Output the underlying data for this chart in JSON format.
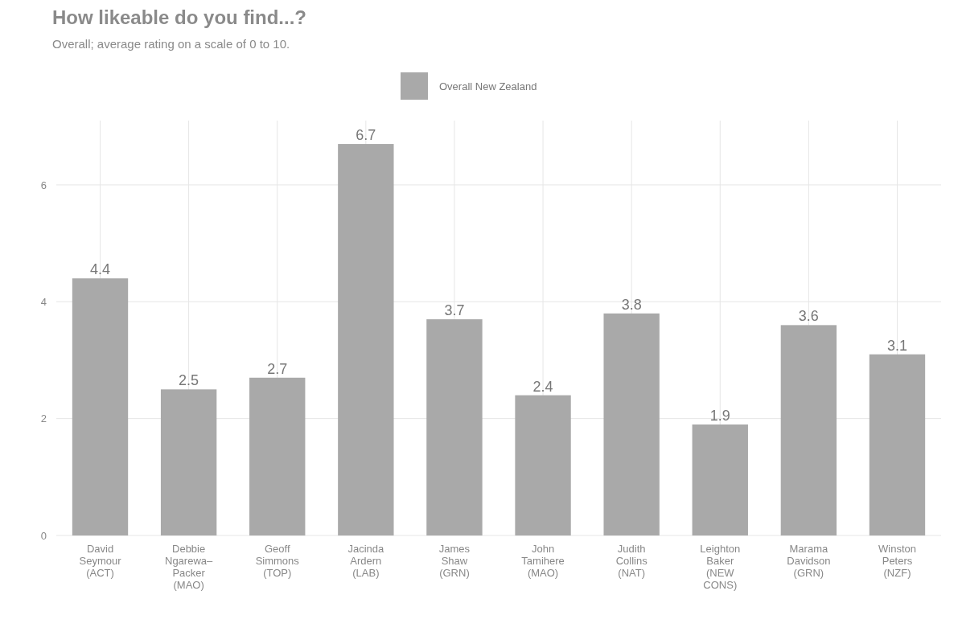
{
  "chart_data": {
    "type": "bar",
    "title": "How likeable do you find...?",
    "subtitle": "Overall; average rating on a scale of 0 to 10.",
    "categories": [
      "David Seymour (ACT)",
      "Debbie Ngarewa–Packer (MAO)",
      "Geoff Simmons (TOP)",
      "Jacinda Ardern (LAB)",
      "James Shaw (GRN)",
      "John Tamihere (MAO)",
      "Judith Collins (NAT)",
      "Leighton Baker (NEW CONS)",
      "Marama Davidson (GRN)",
      "Winston Peters (NZF)"
    ],
    "series": [
      {
        "name": "Overall New Zealand",
        "color": "#a9a9a9",
        "values": [
          4.4,
          2.5,
          2.7,
          6.7,
          3.7,
          2.4,
          3.8,
          1.9,
          3.6,
          3.1
        ]
      }
    ],
    "ylim": [
      0,
      7.1
    ],
    "yticks": [
      0,
      2,
      4,
      6
    ],
    "grid": true,
    "legend": "top",
    "data_labels": true
  }
}
